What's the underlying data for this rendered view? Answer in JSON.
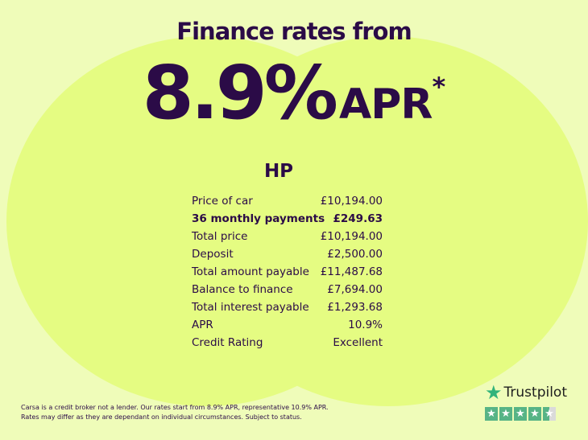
{
  "headline": "Finance rates from",
  "rate": {
    "value": "8.9%",
    "suffix": "APR",
    "asterisk": "*"
  },
  "product": "HP",
  "rows": [
    {
      "label": "Price of car",
      "value": "£10,194.00",
      "bold": false
    },
    {
      "label": "36 monthly payments",
      "value": "£249.63",
      "bold": true
    },
    {
      "label": "Total price",
      "value": "£10,194.00",
      "bold": false
    },
    {
      "label": "Deposit",
      "value": "£2,500.00",
      "bold": false
    },
    {
      "label": "Total amount payable",
      "value": "£11,487.68",
      "bold": false
    },
    {
      "label": "Balance to finance",
      "value": "£7,694.00",
      "bold": false
    },
    {
      "label": "Total interest payable",
      "value": "£1,293.68",
      "bold": false
    },
    {
      "label": "APR",
      "value": "10.9%",
      "bold": false
    },
    {
      "label": "Credit Rating",
      "value": "Excellent",
      "bold": false
    }
  ],
  "disclaimer": {
    "line1": "Carsa is a credit broker not a lender. Our rates start from 8.9% APR, representative 10.9% APR.",
    "line2": "Rates may differ as they are dependant on individual circumstances. Subject to status."
  },
  "trustpilot": {
    "label": "Trustpilot",
    "rating": 4.5,
    "max": 5,
    "icon": "star-icon"
  },
  "colors": {
    "background": "#effcb9",
    "circles": "#e5fc82",
    "text": "#2b0b47",
    "trustpilot_green": "#57b486"
  }
}
